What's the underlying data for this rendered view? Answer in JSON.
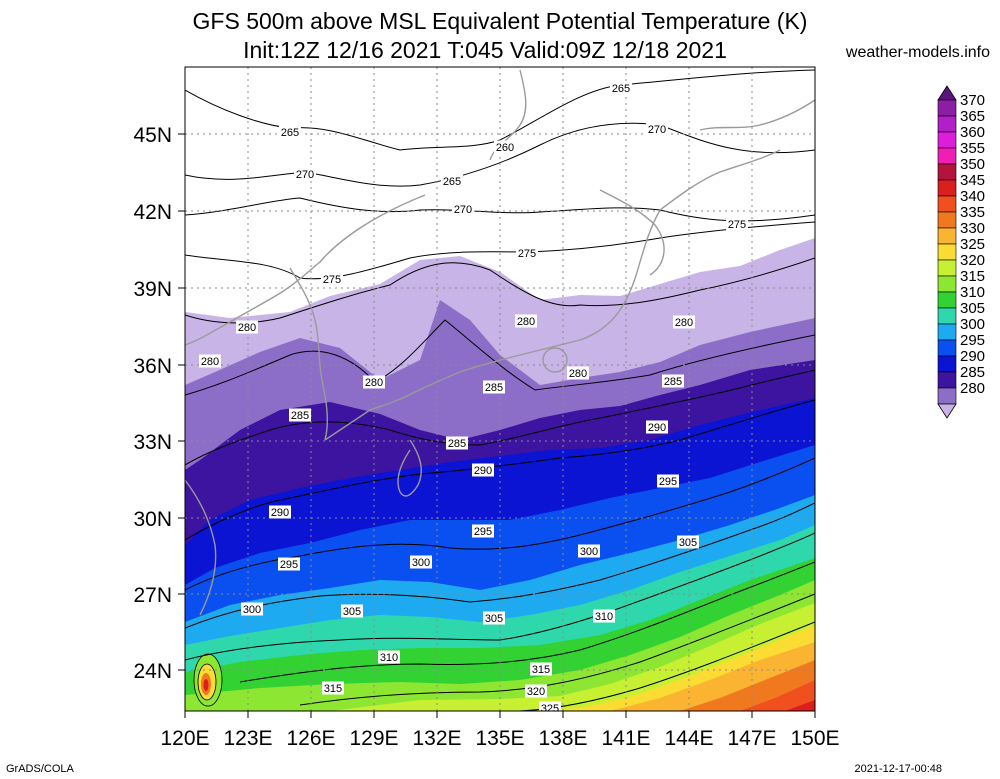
{
  "title": {
    "line1": "GFS 500m above MSL Equivalent Potential Temperature (K)",
    "line2": "Init:12Z 12/16 2021 T:045 Valid:09Z 12/18 2021"
  },
  "site": "weather-models.info",
  "footer": {
    "left": "GrADS/COLA",
    "right": "2021-12-17-00:48"
  },
  "map": {
    "lon_labels": [
      "120E",
      "123E",
      "126E",
      "129E",
      "132E",
      "135E",
      "138E",
      "141E",
      "144E",
      "147E",
      "150E"
    ],
    "lat_labels": [
      "45N",
      "42N",
      "39N",
      "36N",
      "33N",
      "30N",
      "27N",
      "24N"
    ]
  },
  "colorbar": {
    "levels": [
      "370",
      "365",
      "360",
      "355",
      "350",
      "345",
      "340",
      "335",
      "330",
      "325",
      "320",
      "315",
      "310",
      "305",
      "300",
      "295",
      "290",
      "285",
      "280"
    ],
    "colors": [
      "#8c1ea6",
      "#b21ec8",
      "#dc1edc",
      "#f01eb4",
      "#b4143c",
      "#dc1e1e",
      "#f0501e",
      "#f0781e",
      "#fab432",
      "#fadc32",
      "#c8f032",
      "#8ce632",
      "#32d232",
      "#2ed8ac",
      "#1eaaf0",
      "#0a50f0",
      "#0a14d2",
      "#3c14a0",
      "#8c6ec8",
      "#c8b4e6"
    ],
    "top_color": "#5a1482"
  },
  "contours": [
    {
      "label": "265"
    },
    {
      "label": "265"
    },
    {
      "label": "265"
    },
    {
      "label": "260"
    },
    {
      "label": "270"
    },
    {
      "label": "270"
    },
    {
      "label": "270"
    },
    {
      "label": "275"
    },
    {
      "label": "275"
    },
    {
      "label": "275"
    },
    {
      "label": "280"
    },
    {
      "label": "280"
    },
    {
      "label": "280"
    },
    {
      "label": "280"
    },
    {
      "label": "280"
    },
    {
      "label": "280"
    },
    {
      "label": "285"
    },
    {
      "label": "285"
    },
    {
      "label": "285"
    },
    {
      "label": "285"
    },
    {
      "label": "290"
    },
    {
      "label": "290"
    },
    {
      "label": "290"
    },
    {
      "label": "295"
    },
    {
      "label": "295"
    },
    {
      "label": "295"
    },
    {
      "label": "300"
    },
    {
      "label": "300"
    },
    {
      "label": "300"
    },
    {
      "label": "305"
    },
    {
      "label": "305"
    },
    {
      "label": "305"
    },
    {
      "label": "310"
    },
    {
      "label": "310"
    },
    {
      "label": "315"
    },
    {
      "label": "315"
    },
    {
      "label": "320"
    },
    {
      "label": "325"
    }
  ]
}
